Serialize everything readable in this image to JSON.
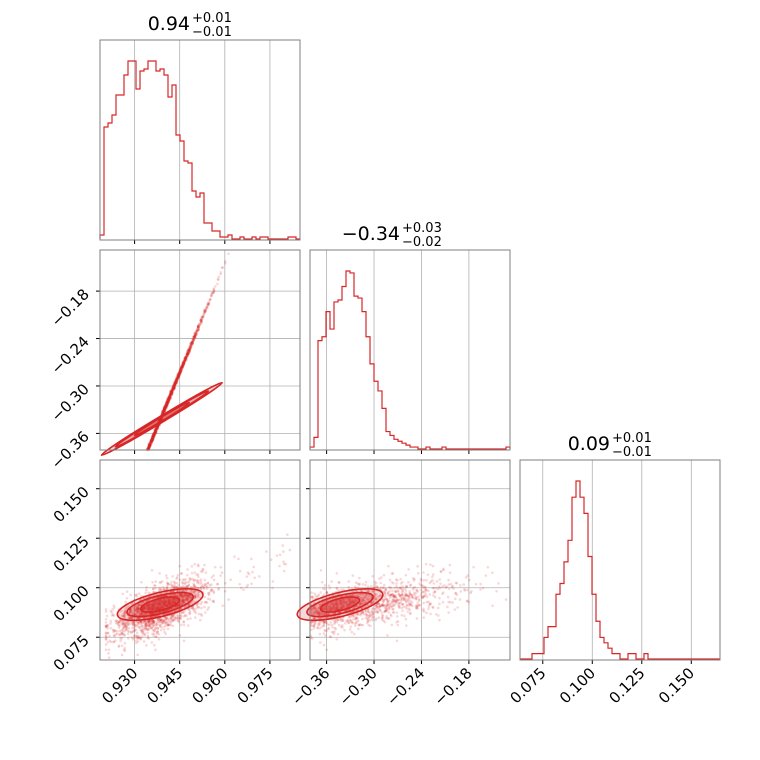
{
  "chart_data": {
    "type": "corner",
    "color": "#d62728",
    "grid": true,
    "parameters": [
      {
        "title_value": "0.94",
        "title_plus": "+0.01",
        "title_minus": "−0.01",
        "range": [
          0.9185,
          0.985
        ],
        "ticks": [
          0.93,
          0.945,
          0.96,
          0.975
        ],
        "tick_labels": [
          "0.930",
          "0.945",
          "0.960",
          "0.975"
        ],
        "histogram": {
          "edges_start": 0.9185,
          "edges_end": 0.985,
          "counts": [
            2,
            56,
            58,
            62,
            72,
            72,
            82,
            89,
            89,
            75,
            84,
            85,
            89,
            89,
            84,
            85,
            82,
            71,
            77,
            52,
            49,
            39,
            38,
            24,
            21,
            23,
            8,
            8,
            4,
            4,
            1,
            1,
            2,
            0,
            0,
            1,
            0,
            0,
            1,
            0,
            1,
            1,
            0,
            0,
            0,
            0,
            0,
            1,
            1,
            0
          ]
        }
      },
      {
        "title_value": "−0.34",
        "title_plus": "+0.03",
        "title_minus": "−0.02",
        "range": [
          -0.381,
          -0.128
        ],
        "ticks": [
          -0.36,
          -0.3,
          -0.24,
          -0.18
        ],
        "tick_labels": [
          "−0.36",
          "−0.30",
          "−0.24",
          "−0.18"
        ],
        "histogram": {
          "edges_start": -0.381,
          "edges_end": -0.128,
          "counts": [
            1,
            6,
            56,
            58,
            71,
            62,
            76,
            77,
            84,
            92,
            91,
            79,
            78,
            71,
            58,
            44,
            35,
            30,
            21,
            9,
            7,
            5,
            4,
            3,
            2,
            1,
            1,
            0,
            0,
            1,
            0,
            0,
            0,
            1,
            0,
            0,
            0,
            0,
            0,
            0,
            0,
            0,
            0,
            0,
            0,
            0,
            0,
            0,
            0,
            1
          ]
        }
      },
      {
        "title_value": "0.09",
        "title_plus": "+0.01",
        "title_minus": "−0.01",
        "range": [
          0.0635,
          0.1645
        ],
        "ticks": [
          0.075,
          0.1,
          0.125,
          0.15
        ],
        "tick_labels": [
          "0.075",
          "0.100",
          "0.125",
          "0.150"
        ],
        "histogram": {
          "edges_start": 0.0635,
          "edges_end": 0.1645,
          "counts": [
            0,
            0,
            0,
            1,
            1,
            1,
            4,
            6,
            6,
            12,
            14,
            18,
            22,
            30,
            33,
            30,
            27,
            19,
            12,
            7,
            4,
            3,
            2,
            1,
            1,
            0,
            0,
            1,
            1,
            0,
            0,
            1,
            0,
            0,
            0,
            0,
            0,
            0,
            0,
            0,
            0,
            0,
            0,
            0,
            0,
            0,
            0,
            0,
            0,
            0
          ]
        }
      }
    ],
    "contour_levels": [
      0.393,
      0.865,
      0.989
    ]
  }
}
